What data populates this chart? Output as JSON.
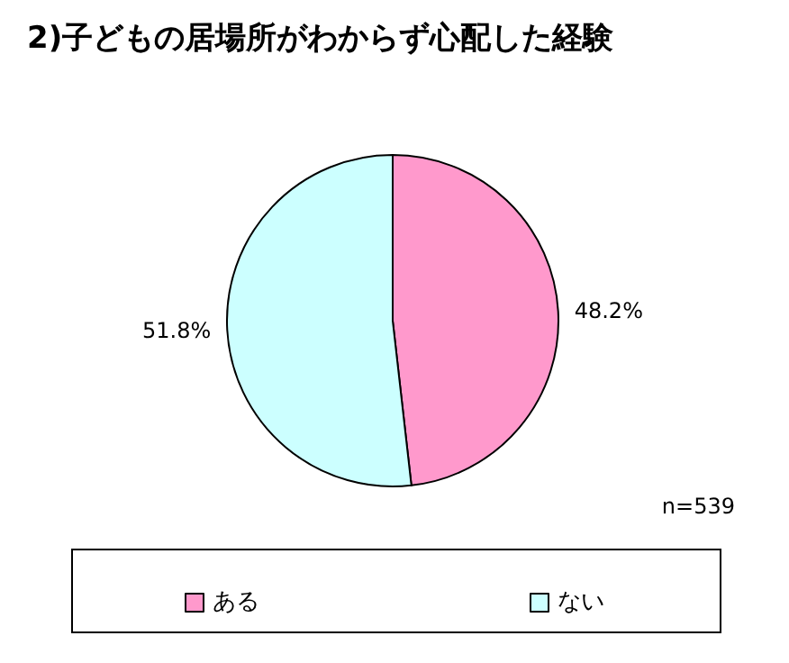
{
  "chart_data": {
    "type": "pie",
    "title": "2)子どもの居場所がわからず心配した経験",
    "categories": [
      "ある",
      "ない"
    ],
    "values": [
      48.2,
      51.8
    ],
    "colors": [
      "#ff99cc",
      "#ccffff"
    ],
    "value_labels": [
      "48.2%",
      "51.8%"
    ],
    "annotations": [
      "n=539"
    ],
    "legend": "bottom"
  }
}
